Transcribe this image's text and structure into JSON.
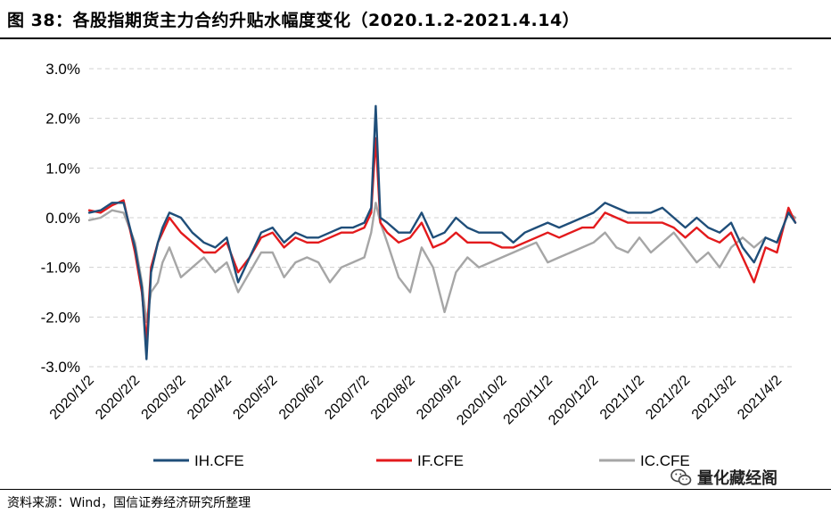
{
  "title": "图 38：各股指期货主力合约升贴水幅度变化（2020.1.2-2021.4.14）",
  "source": "资料来源：Wind，国信证券经济研究所整理",
  "watermark": "量化藏经阁",
  "chart_data": {
    "type": "line",
    "title": "各股指期货主力合约升贴水幅度变化（2020.1.2-2021.4.14）",
    "xlabel": "",
    "ylabel": "",
    "ylim": [
      -3.0,
      3.0
    ],
    "y_ticks": [
      3.0,
      2.0,
      1.0,
      0.0,
      -1.0,
      -2.0,
      -3.0
    ],
    "y_tick_labels": [
      "3.0%",
      "2.0%",
      "1.0%",
      "0.0%",
      "-1.0%",
      "-2.0%",
      "-3.0%"
    ],
    "grid": true,
    "legend_position": "bottom",
    "x_tick_labels": [
      "2020/1/2",
      "2020/2/2",
      "2020/3/2",
      "2020/4/2",
      "2020/5/2",
      "2020/6/2",
      "2020/7/2",
      "2020/8/2",
      "2020/9/2",
      "2020/10/2",
      "2020/11/2",
      "2020/12/2",
      "2021/1/2",
      "2021/2/2",
      "2021/3/2",
      "2021/4/2"
    ],
    "x_month_index": [
      0,
      1,
      2,
      3,
      4,
      5,
      6,
      7,
      8,
      9,
      10,
      11,
      12,
      13,
      14,
      15
    ],
    "x_range": [
      0,
      15.4
    ],
    "x": [
      0,
      0.25,
      0.5,
      0.75,
      1,
      1.15,
      1.25,
      1.35,
      1.5,
      1.6,
      1.75,
      2,
      2.25,
      2.5,
      2.75,
      3,
      3.25,
      3.5,
      3.75,
      4,
      4.25,
      4.5,
      4.75,
      5,
      5.25,
      5.5,
      5.75,
      6,
      6.15,
      6.25,
      6.35,
      6.5,
      6.75,
      7,
      7.25,
      7.5,
      7.75,
      8,
      8.25,
      8.5,
      8.75,
      9,
      9.25,
      9.5,
      9.75,
      10,
      10.25,
      10.5,
      10.75,
      11,
      11.25,
      11.5,
      11.75,
      12,
      12.25,
      12.5,
      12.75,
      13,
      13.25,
      13.5,
      13.75,
      14,
      14.25,
      14.5,
      14.75,
      15,
      15.25,
      15.4
    ],
    "series": [
      {
        "name": "IH.CFE",
        "color": "#1f4e79",
        "values": [
          0.1,
          0.15,
          0.3,
          0.3,
          -0.6,
          -1.4,
          -2.85,
          -1.1,
          -0.5,
          -0.2,
          0.1,
          0.0,
          -0.3,
          -0.5,
          -0.6,
          -0.4,
          -1.3,
          -0.8,
          -0.3,
          -0.2,
          -0.5,
          -0.3,
          -0.4,
          -0.4,
          -0.3,
          -0.2,
          -0.2,
          -0.1,
          0.2,
          2.25,
          0.0,
          -0.1,
          -0.3,
          -0.3,
          0.1,
          -0.4,
          -0.3,
          0.0,
          -0.2,
          -0.3,
          -0.3,
          -0.3,
          -0.5,
          -0.3,
          -0.2,
          -0.1,
          -0.2,
          -0.1,
          0.0,
          0.1,
          0.3,
          0.2,
          0.1,
          0.1,
          0.1,
          0.2,
          0.0,
          -0.2,
          0.0,
          -0.2,
          -0.3,
          -0.1,
          -0.6,
          -0.9,
          -0.4,
          -0.5,
          0.1,
          -0.1
        ]
      },
      {
        "name": "IF.CFE",
        "color": "#e31a1c",
        "values": [
          0.15,
          0.1,
          0.25,
          0.35,
          -0.7,
          -1.5,
          -2.5,
          -1.0,
          -0.5,
          -0.3,
          0.0,
          -0.3,
          -0.5,
          -0.7,
          -0.7,
          -0.5,
          -1.1,
          -0.8,
          -0.4,
          -0.3,
          -0.6,
          -0.4,
          -0.5,
          -0.5,
          -0.4,
          -0.3,
          -0.3,
          -0.2,
          0.1,
          1.6,
          -0.1,
          -0.3,
          -0.5,
          -0.4,
          -0.1,
          -0.6,
          -0.5,
          -0.3,
          -0.5,
          -0.5,
          -0.5,
          -0.6,
          -0.6,
          -0.5,
          -0.4,
          -0.3,
          -0.4,
          -0.3,
          -0.2,
          -0.2,
          0.1,
          0.0,
          -0.1,
          -0.1,
          -0.1,
          -0.1,
          -0.2,
          -0.4,
          -0.2,
          -0.4,
          -0.5,
          -0.3,
          -0.8,
          -1.3,
          -0.6,
          -0.7,
          0.2,
          -0.1
        ]
      },
      {
        "name": "IC.CFE",
        "color": "#a6a6a6",
        "values": [
          -0.05,
          0.0,
          0.15,
          0.1,
          -0.5,
          -1.3,
          -2.1,
          -1.5,
          -1.3,
          -0.9,
          -0.6,
          -1.2,
          -1.0,
          -0.8,
          -1.1,
          -0.9,
          -1.5,
          -1.1,
          -0.7,
          -0.7,
          -1.2,
          -0.9,
          -0.8,
          -0.9,
          -1.3,
          -1.0,
          -0.9,
          -0.8,
          -0.3,
          0.3,
          -0.1,
          -0.5,
          -1.2,
          -1.5,
          -0.6,
          -1.0,
          -1.9,
          -1.1,
          -0.8,
          -1.0,
          -0.9,
          -0.8,
          -0.7,
          -0.6,
          -0.5,
          -0.9,
          -0.8,
          -0.7,
          -0.6,
          -0.5,
          -0.3,
          -0.6,
          -0.7,
          -0.4,
          -0.7,
          -0.5,
          -0.3,
          -0.6,
          -0.9,
          -0.7,
          -1.0,
          -0.6,
          -0.4,
          -0.6,
          -0.4,
          -0.5,
          0.1,
          0.0
        ]
      }
    ]
  }
}
